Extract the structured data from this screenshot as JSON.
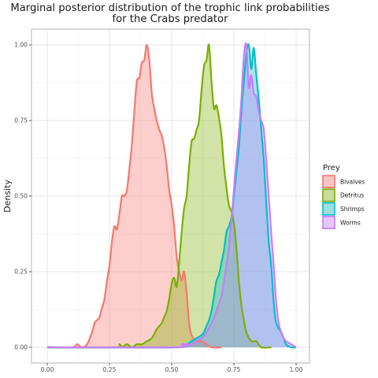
{
  "chart_data": {
    "type": "area",
    "title": "Marginal posterior distribution of the trophic link probabilities\nfor the Crabs predator",
    "xlabel": "",
    "ylabel": "Density",
    "xlim": [
      0,
      1
    ],
    "ylim": [
      0,
      1
    ],
    "x_ticks": [
      "0.00",
      "0.25",
      "0.50",
      "0.75",
      "1.00"
    ],
    "y_ticks": [
      "0.00",
      "0.25",
      "0.50",
      "0.75",
      "1.00"
    ],
    "grid": true,
    "legend": {
      "title": "Prey",
      "position": "right"
    },
    "series": [
      {
        "name": "Bivalves",
        "color": "#F8766D",
        "fill": "#F8766D",
        "points": [
          [
            0.0,
            0.0
          ],
          [
            0.1,
            0.0
          ],
          [
            0.12,
            0.01
          ],
          [
            0.14,
            0.0
          ],
          [
            0.16,
            0.01
          ],
          [
            0.18,
            0.05
          ],
          [
            0.19,
            0.08
          ],
          [
            0.2,
            0.09
          ],
          [
            0.21,
            0.1
          ],
          [
            0.22,
            0.13
          ],
          [
            0.23,
            0.16
          ],
          [
            0.24,
            0.22
          ],
          [
            0.25,
            0.27
          ],
          [
            0.26,
            0.35
          ],
          [
            0.27,
            0.4
          ],
          [
            0.28,
            0.39
          ],
          [
            0.29,
            0.44
          ],
          [
            0.3,
            0.5
          ],
          [
            0.31,
            0.5
          ],
          [
            0.32,
            0.52
          ],
          [
            0.33,
            0.59
          ],
          [
            0.34,
            0.67
          ],
          [
            0.35,
            0.78
          ],
          [
            0.36,
            0.88
          ],
          [
            0.37,
            0.89
          ],
          [
            0.38,
            0.94
          ],
          [
            0.39,
            0.95
          ],
          [
            0.4,
            1.0
          ],
          [
            0.41,
            0.95
          ],
          [
            0.42,
            0.84
          ],
          [
            0.43,
            0.79
          ],
          [
            0.44,
            0.75
          ],
          [
            0.45,
            0.72
          ],
          [
            0.46,
            0.7
          ],
          [
            0.47,
            0.66
          ],
          [
            0.48,
            0.6
          ],
          [
            0.49,
            0.52
          ],
          [
            0.5,
            0.47
          ],
          [
            0.51,
            0.4
          ],
          [
            0.52,
            0.3
          ],
          [
            0.53,
            0.25
          ],
          [
            0.54,
            0.22
          ],
          [
            0.55,
            0.25
          ],
          [
            0.56,
            0.18
          ],
          [
            0.57,
            0.08
          ],
          [
            0.58,
            0.04
          ],
          [
            0.6,
            0.02
          ],
          [
            0.62,
            0.02
          ],
          [
            0.64,
            0.01
          ],
          [
            0.66,
            0.0
          ],
          [
            0.7,
            0.0
          ]
        ]
      },
      {
        "name": "Detritus",
        "color": "#7CAE00",
        "fill": "#7CAE00",
        "points": [
          [
            0.0,
            0.0
          ],
          [
            0.27,
            0.0
          ],
          [
            0.29,
            0.01
          ],
          [
            0.3,
            0.0
          ],
          [
            0.32,
            0.01
          ],
          [
            0.34,
            0.0
          ],
          [
            0.36,
            0.01
          ],
          [
            0.38,
            0.01
          ],
          [
            0.4,
            0.02
          ],
          [
            0.42,
            0.03
          ],
          [
            0.44,
            0.06
          ],
          [
            0.45,
            0.07
          ],
          [
            0.46,
            0.08
          ],
          [
            0.47,
            0.1
          ],
          [
            0.48,
            0.12
          ],
          [
            0.49,
            0.16
          ],
          [
            0.5,
            0.21
          ],
          [
            0.51,
            0.23
          ],
          [
            0.52,
            0.2
          ],
          [
            0.53,
            0.28
          ],
          [
            0.54,
            0.38
          ],
          [
            0.55,
            0.46
          ],
          [
            0.56,
            0.5
          ],
          [
            0.57,
            0.6
          ],
          [
            0.58,
            0.68
          ],
          [
            0.59,
            0.69
          ],
          [
            0.6,
            0.72
          ],
          [
            0.61,
            0.75
          ],
          [
            0.62,
            0.85
          ],
          [
            0.63,
            0.93
          ],
          [
            0.64,
            0.95
          ],
          [
            0.65,
            1.0
          ],
          [
            0.66,
            0.88
          ],
          [
            0.67,
            0.79
          ],
          [
            0.68,
            0.8
          ],
          [
            0.69,
            0.76
          ],
          [
            0.7,
            0.7
          ],
          [
            0.71,
            0.6
          ],
          [
            0.72,
            0.53
          ],
          [
            0.73,
            0.47
          ],
          [
            0.74,
            0.45
          ],
          [
            0.75,
            0.41
          ],
          [
            0.76,
            0.33
          ],
          [
            0.77,
            0.22
          ],
          [
            0.78,
            0.14
          ],
          [
            0.79,
            0.09
          ],
          [
            0.8,
            0.05
          ],
          [
            0.82,
            0.02
          ],
          [
            0.84,
            0.02
          ],
          [
            0.86,
            0.0
          ],
          [
            0.9,
            0.0
          ]
        ]
      },
      {
        "name": "Shrimps",
        "color": "#00BFC4",
        "fill": "#00BFC4",
        "points": [
          [
            0.0,
            0.0
          ],
          [
            0.52,
            0.0
          ],
          [
            0.54,
            0.01
          ],
          [
            0.56,
            0.01
          ],
          [
            0.58,
            0.02
          ],
          [
            0.6,
            0.03
          ],
          [
            0.62,
            0.04
          ],
          [
            0.63,
            0.05
          ],
          [
            0.64,
            0.07
          ],
          [
            0.65,
            0.09
          ],
          [
            0.66,
            0.12
          ],
          [
            0.67,
            0.17
          ],
          [
            0.68,
            0.22
          ],
          [
            0.69,
            0.24
          ],
          [
            0.7,
            0.28
          ],
          [
            0.71,
            0.32
          ],
          [
            0.72,
            0.38
          ],
          [
            0.73,
            0.4
          ],
          [
            0.74,
            0.43
          ],
          [
            0.75,
            0.5
          ],
          [
            0.76,
            0.58
          ],
          [
            0.77,
            0.66
          ],
          [
            0.78,
            0.78
          ],
          [
            0.79,
            0.88
          ],
          [
            0.8,
            0.97
          ],
          [
            0.81,
            1.0
          ],
          [
            0.82,
            0.92
          ],
          [
            0.83,
            0.99
          ],
          [
            0.84,
            0.9
          ],
          [
            0.85,
            0.82
          ],
          [
            0.86,
            0.72
          ],
          [
            0.87,
            0.62
          ],
          [
            0.88,
            0.48
          ],
          [
            0.89,
            0.35
          ],
          [
            0.9,
            0.27
          ],
          [
            0.91,
            0.15
          ],
          [
            0.92,
            0.08
          ],
          [
            0.94,
            0.05
          ],
          [
            0.95,
            0.03
          ],
          [
            0.96,
            0.01
          ],
          [
            0.98,
            0.0
          ],
          [
            1.0,
            0.0
          ]
        ]
      },
      {
        "name": "Worms",
        "color": "#C77CFF",
        "fill": "#C77CFF",
        "points": [
          [
            0.0,
            0.0
          ],
          [
            0.52,
            0.0
          ],
          [
            0.54,
            0.01
          ],
          [
            0.56,
            0.01
          ],
          [
            0.58,
            0.01
          ],
          [
            0.6,
            0.02
          ],
          [
            0.62,
            0.03
          ],
          [
            0.64,
            0.05
          ],
          [
            0.66,
            0.08
          ],
          [
            0.68,
            0.12
          ],
          [
            0.7,
            0.17
          ],
          [
            0.71,
            0.22
          ],
          [
            0.72,
            0.27
          ],
          [
            0.73,
            0.33
          ],
          [
            0.74,
            0.42
          ],
          [
            0.75,
            0.52
          ],
          [
            0.76,
            0.62
          ],
          [
            0.77,
            0.71
          ],
          [
            0.78,
            0.82
          ],
          [
            0.79,
            0.96
          ],
          [
            0.8,
            1.0
          ],
          [
            0.81,
            0.86
          ],
          [
            0.82,
            0.9
          ],
          [
            0.83,
            0.84
          ],
          [
            0.84,
            0.83
          ],
          [
            0.85,
            0.78
          ],
          [
            0.86,
            0.75
          ],
          [
            0.87,
            0.72
          ],
          [
            0.88,
            0.62
          ],
          [
            0.89,
            0.5
          ],
          [
            0.9,
            0.38
          ],
          [
            0.91,
            0.27
          ],
          [
            0.92,
            0.15
          ],
          [
            0.93,
            0.08
          ],
          [
            0.94,
            0.05
          ],
          [
            0.95,
            0.03
          ],
          [
            0.96,
            0.02
          ],
          [
            0.98,
            0.01
          ],
          [
            1.0,
            0.0
          ]
        ]
      }
    ]
  }
}
